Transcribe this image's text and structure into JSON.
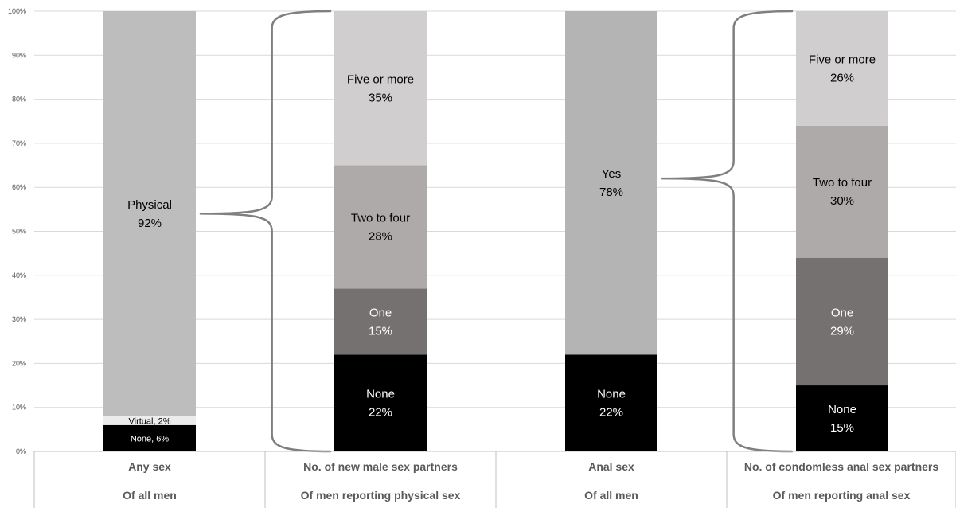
{
  "chart_data": {
    "type": "bar",
    "stacked": true,
    "y_unit": "percent",
    "ylim": [
      0,
      100
    ],
    "y_ticks": [
      "0%",
      "10%",
      "20%",
      "30%",
      "40%",
      "50%",
      "60%",
      "70%",
      "80%",
      "90%",
      "100%"
    ],
    "grid": true,
    "categories": [
      {
        "label": "Any sex",
        "sublabel": "Of all men"
      },
      {
        "label": "No. of new male sex partners",
        "sublabel": "Of men reporting physical sex"
      },
      {
        "label": "Anal sex",
        "sublabel": "Of all men"
      },
      {
        "label": "No. of condomless anal sex partners",
        "sublabel": "Of men reporting anal sex"
      }
    ],
    "bars": [
      {
        "segments": [
          {
            "name": "None",
            "value": 6,
            "label": "None, 6%",
            "color": "#000000",
            "text_color": "#ffffff"
          },
          {
            "name": "Virtual",
            "value": 2,
            "label": "Virtual, 2%",
            "color": "#ececec",
            "text_color": "#000000"
          },
          {
            "name": "Physical",
            "value": 92,
            "label": "Physical|92%",
            "color": "#bdbdbd",
            "text_color": "#000000"
          }
        ]
      },
      {
        "segments": [
          {
            "name": "None",
            "value": 22,
            "label": "None|22%",
            "color": "#000000",
            "text_color": "#ffffff"
          },
          {
            "name": "One",
            "value": 15,
            "label": "One|15%",
            "color": "#767171",
            "text_color": "#ffffff"
          },
          {
            "name": "Two to four",
            "value": 28,
            "label": "Two to four|28%",
            "color": "#aeaaaa",
            "text_color": "#000000"
          },
          {
            "name": "Five or more",
            "value": 35,
            "label": "Five or more|35%",
            "color": "#d0cece",
            "text_color": "#000000"
          }
        ]
      },
      {
        "segments": [
          {
            "name": "None",
            "value": 22,
            "label": "None|22%",
            "color": "#000000",
            "text_color": "#ffffff"
          },
          {
            "name": "Yes",
            "value": 78,
            "label": "Yes|78%",
            "color": "#b4b4b4",
            "text_color": "#000000"
          }
        ]
      },
      {
        "segments": [
          {
            "name": "None",
            "value": 15,
            "label": "None|15%",
            "color": "#000000",
            "text_color": "#ffffff"
          },
          {
            "name": "One",
            "value": 29,
            "label": "One|29%",
            "color": "#767171",
            "text_color": "#ffffff"
          },
          {
            "name": "Two to four",
            "value": 30,
            "label": "Two to four|30%",
            "color": "#aeaaaa",
            "text_color": "#000000"
          },
          {
            "name": "Five or more",
            "value": 26,
            "label": "Five or more|26%",
            "color": "#d0cece",
            "text_color": "#000000"
          }
        ]
      }
    ],
    "braces": [
      {
        "from_bar": 0,
        "from_value": 54,
        "to_bar": 1,
        "span": [
          0,
          100
        ]
      },
      {
        "from_bar": 2,
        "from_value": 62,
        "to_bar": 3,
        "span": [
          0,
          100
        ]
      }
    ],
    "colors": {
      "grid": "#d9d9d9",
      "axis_text": "#595959",
      "brace": "#7f7f7f",
      "category_text": "#595959"
    }
  }
}
